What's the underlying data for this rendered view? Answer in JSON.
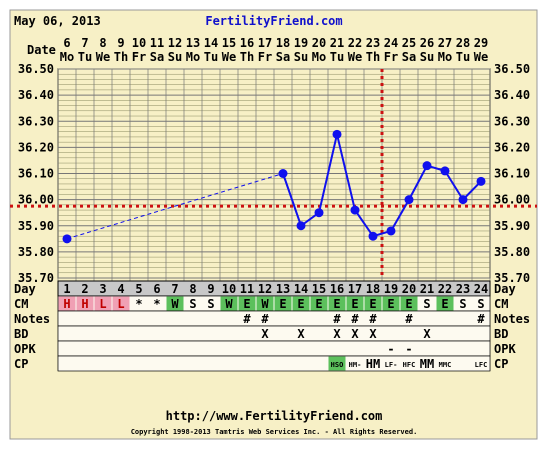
{
  "header": {
    "date": "May 06, 2013",
    "site": "FertilityFriend.com"
  },
  "footer": {
    "url": "http://www.FertilityFriend.com",
    "copyright": "Copyright 1998-2013 Tamtris Web Services Inc. - All Rights Reserved."
  },
  "labels": {
    "date": "Date",
    "day": "Day",
    "cm": "CM",
    "notes": "Notes",
    "bd": "BD",
    "opk": "OPK",
    "cp": "CP"
  },
  "colors": {
    "chart_bg": "#f7f0c6",
    "grid": "#8a8a60",
    "line": "#1010ee",
    "coverline": "#cc1111",
    "cm_h": "#f0a0b4",
    "cm_w": "#5cc05c",
    "cm_e": "#5cc05c",
    "cp_hso": "#5cc05c",
    "day_row": "#c8c8c8"
  },
  "dates": [
    {
      "num": "6",
      "dow": "Mo"
    },
    {
      "num": "7",
      "dow": "Tu"
    },
    {
      "num": "8",
      "dow": "We"
    },
    {
      "num": "9",
      "dow": "Th"
    },
    {
      "num": "10",
      "dow": "Fr"
    },
    {
      "num": "11",
      "dow": "Sa"
    },
    {
      "num": "12",
      "dow": "Su"
    },
    {
      "num": "13",
      "dow": "Mo"
    },
    {
      "num": "14",
      "dow": "Tu"
    },
    {
      "num": "15",
      "dow": "We"
    },
    {
      "num": "16",
      "dow": "Th"
    },
    {
      "num": "17",
      "dow": "Fr"
    },
    {
      "num": "18",
      "dow": "Sa"
    },
    {
      "num": "19",
      "dow": "Su"
    },
    {
      "num": "20",
      "dow": "Mo"
    },
    {
      "num": "21",
      "dow": "Tu"
    },
    {
      "num": "22",
      "dow": "We"
    },
    {
      "num": "23",
      "dow": "Th"
    },
    {
      "num": "24",
      "dow": "Fr"
    },
    {
      "num": "25",
      "dow": "Sa"
    },
    {
      "num": "26",
      "dow": "Su"
    },
    {
      "num": "27",
      "dow": "Mo"
    },
    {
      "num": "28",
      "dow": "Tu"
    },
    {
      "num": "29",
      "dow": "We"
    }
  ],
  "rows": {
    "cm": [
      "H",
      "H",
      "L",
      "L",
      "*",
      "*",
      "W",
      "S",
      "S",
      "W",
      "E",
      "W",
      "E",
      "E",
      "E",
      "E",
      "E",
      "E",
      "E",
      "E",
      "S",
      "E",
      "S",
      "S"
    ],
    "notes": [
      "",
      "",
      "",
      "",
      "",
      "",
      "",
      "",
      "",
      "",
      "#",
      "#",
      "",
      "",
      "",
      "#",
      "#",
      "#",
      "",
      "#",
      "",
      "",
      "",
      "#"
    ],
    "bd": [
      "",
      "",
      "",
      "",
      "",
      "",
      "",
      "",
      "",
      "",
      "",
      "X",
      "",
      "X",
      "",
      "X",
      "X",
      "X",
      "",
      "",
      "X",
      "",
      "",
      ""
    ],
    "opk": [
      "",
      "",
      "",
      "",
      "",
      "",
      "",
      "",
      "",
      "",
      "",
      "",
      "",
      "",
      "",
      "",
      "",
      "",
      "-",
      "-",
      "",
      "",
      "",
      ""
    ],
    "cp": [
      "",
      "",
      "",
      "",
      "",
      "",
      "",
      "",
      "",
      "",
      "",
      "",
      "",
      "",
      "",
      "HSO",
      "HM-",
      "HM",
      "LF-",
      "HFC",
      "MM",
      "MMC",
      "",
      "LFC"
    ]
  },
  "chart_data": {
    "type": "line",
    "x": [
      1,
      2,
      3,
      4,
      5,
      6,
      7,
      8,
      9,
      10,
      11,
      12,
      13,
      14,
      15,
      16,
      17,
      18,
      19,
      20,
      21,
      22,
      23,
      24
    ],
    "y_label_unit": "temperature",
    "ylim": [
      35.7,
      36.5
    ],
    "yticks": [
      "35.70",
      "35.80",
      "35.90",
      "36.00",
      "36.10",
      "36.20",
      "36.30",
      "36.40",
      "36.50"
    ],
    "series": [
      {
        "values": [
          35.85,
          null,
          null,
          null,
          null,
          null,
          null,
          null,
          null,
          null,
          null,
          null,
          36.1,
          35.9,
          35.95,
          36.25,
          35.96,
          35.86,
          35.88,
          36.0,
          36.13,
          36.11,
          36.0,
          36.07
        ]
      }
    ],
    "coverline": 35.975,
    "ovulation_day": 19,
    "grid": true
  }
}
